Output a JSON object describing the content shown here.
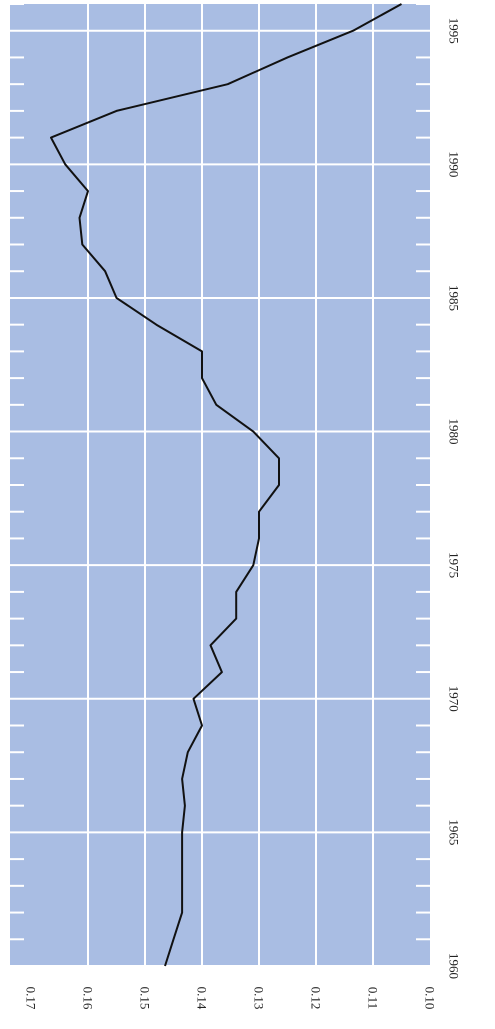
{
  "chart_data": {
    "type": "line",
    "title": "",
    "xlabel": "",
    "ylabel": "",
    "orientation": "rotated-90",
    "grid": true,
    "colors": {
      "plot_background": "#a9bde3",
      "grid": "#ffffff",
      "line": "#111111"
    },
    "xlim": [
      1960,
      1996
    ],
    "ylim": [
      0.1,
      0.17
    ],
    "x_ticks": [
      "1960",
      "1965",
      "1970",
      "1975",
      "1980",
      "1985",
      "1990",
      "1995"
    ],
    "y_ticks": [
      "0.10",
      "0.11",
      "0.12",
      "0.13",
      "0.14",
      "0.15",
      "0.16",
      "0.17"
    ],
    "series": [
      {
        "x": [
          1960,
          1961,
          1962,
          1963,
          1964,
          1965,
          1966,
          1967,
          1968,
          1969,
          1970,
          1971,
          1972,
          1973,
          1974,
          1975,
          1976,
          1977,
          1978,
          1979,
          1980,
          1981,
          1982,
          1983,
          1984,
          1985,
          1986,
          1987,
          1988,
          1989,
          1990,
          1991,
          1992,
          1993,
          1994,
          1995,
          1996
        ],
        "y": [
          0.1465,
          0.145,
          0.1435,
          0.1435,
          0.1435,
          0.1435,
          0.143,
          0.1435,
          0.1425,
          0.14,
          0.1415,
          0.1365,
          0.1385,
          0.134,
          0.134,
          0.131,
          0.13,
          0.13,
          0.1265,
          0.1265,
          0.131,
          0.1375,
          0.14,
          0.14,
          0.148,
          0.155,
          0.157,
          0.161,
          0.1615,
          0.16,
          0.164,
          0.1665,
          0.155,
          0.1355,
          0.125,
          0.1135,
          0.105
        ]
      }
    ]
  }
}
